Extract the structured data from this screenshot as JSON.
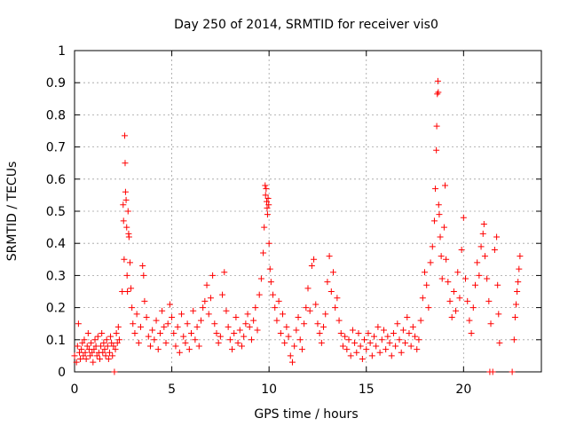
{
  "chart_data": {
    "type": "scatter",
    "title": "Day 250 of 2014, SRMTID for receiver vis0",
    "xlabel": "GPS time / hours",
    "ylabel": "SRMTID / TECUs",
    "xlim": [
      0,
      24
    ],
    "ylim": [
      0,
      1
    ],
    "xticks": [
      0,
      5,
      10,
      15,
      20
    ],
    "xtick_labels": [
      "0",
      "5",
      "10",
      "15",
      "20"
    ],
    "yticks": [
      0,
      0.1,
      0.2,
      0.3,
      0.4,
      0.5,
      0.6,
      0.7,
      0.8,
      0.9,
      1
    ],
    "ytick_labels": [
      "0",
      "0.1",
      "0.2",
      "0.3",
      "0.4",
      "0.5",
      "0.6",
      "0.7",
      "0.8",
      "0.9",
      "1"
    ],
    "grid": true,
    "marker": "+",
    "color": "#ff0000",
    "series": [
      {
        "name": "vis0",
        "points": [
          [
            0.0,
            0.05
          ],
          [
            0.1,
            0.03
          ],
          [
            0.15,
            0.08
          ],
          [
            0.2,
            0.15
          ],
          [
            0.25,
            0.06
          ],
          [
            0.3,
            0.04
          ],
          [
            0.35,
            0.07
          ],
          [
            0.4,
            0.09
          ],
          [
            0.45,
            0.05
          ],
          [
            0.5,
            0.1
          ],
          [
            0.55,
            0.06
          ],
          [
            0.6,
            0.04
          ],
          [
            0.65,
            0.08
          ],
          [
            0.7,
            0.12
          ],
          [
            0.75,
            0.07
          ],
          [
            0.8,
            0.05
          ],
          [
            0.85,
            0.09
          ],
          [
            0.9,
            0.06
          ],
          [
            0.95,
            0.03
          ],
          [
            1.0,
            0.07
          ],
          [
            1.05,
            0.1
          ],
          [
            1.1,
            0.08
          ],
          [
            1.15,
            0.05
          ],
          [
            1.2,
            0.11
          ],
          [
            1.25,
            0.06
          ],
          [
            1.3,
            0.04
          ],
          [
            1.35,
            0.08
          ],
          [
            1.4,
            0.12
          ],
          [
            1.45,
            0.06
          ],
          [
            1.5,
            0.09
          ],
          [
            1.55,
            0.07
          ],
          [
            1.6,
            0.05
          ],
          [
            1.65,
            0.1
          ],
          [
            1.7,
            0.08
          ],
          [
            1.75,
            0.04
          ],
          [
            1.8,
            0.06
          ],
          [
            1.85,
            0.11
          ],
          [
            1.9,
            0.09
          ],
          [
            1.95,
            0.05
          ],
          [
            2.0,
            0.08
          ],
          [
            2.05,
            0.0
          ],
          [
            2.1,
            0.07
          ],
          [
            2.15,
            0.12
          ],
          [
            2.2,
            0.09
          ],
          [
            2.25,
            0.14
          ],
          [
            2.3,
            0.1
          ],
          [
            2.45,
            0.25
          ],
          [
            2.5,
            0.52
          ],
          [
            2.52,
            0.47
          ],
          [
            2.55,
            0.35
          ],
          [
            2.58,
            0.735
          ],
          [
            2.6,
            0.65
          ],
          [
            2.62,
            0.56
          ],
          [
            2.65,
            0.535
          ],
          [
            2.68,
            0.45
          ],
          [
            2.7,
            0.3
          ],
          [
            2.72,
            0.25
          ],
          [
            2.75,
            0.5
          ],
          [
            2.78,
            0.43
          ],
          [
            2.8,
            0.42
          ],
          [
            2.85,
            0.34
          ],
          [
            2.9,
            0.26
          ],
          [
            2.95,
            0.2
          ],
          [
            3.0,
            0.15
          ],
          [
            3.1,
            0.12
          ],
          [
            3.2,
            0.18
          ],
          [
            3.3,
            0.09
          ],
          [
            3.4,
            0.14
          ],
          [
            3.5,
            0.33
          ],
          [
            3.55,
            0.3
          ],
          [
            3.6,
            0.22
          ],
          [
            3.7,
            0.17
          ],
          [
            3.8,
            0.11
          ],
          [
            3.9,
            0.08
          ],
          [
            4.0,
            0.13
          ],
          [
            4.1,
            0.1
          ],
          [
            4.2,
            0.16
          ],
          [
            4.3,
            0.07
          ],
          [
            4.4,
            0.12
          ],
          [
            4.5,
            0.19
          ],
          [
            4.6,
            0.14
          ],
          [
            4.7,
            0.09
          ],
          [
            4.8,
            0.15
          ],
          [
            4.9,
            0.21
          ],
          [
            5.0,
            0.17
          ],
          [
            5.1,
            0.12
          ],
          [
            5.2,
            0.08
          ],
          [
            5.3,
            0.14
          ],
          [
            5.4,
            0.06
          ],
          [
            5.5,
            0.18
          ],
          [
            5.6,
            0.11
          ],
          [
            5.7,
            0.09
          ],
          [
            5.8,
            0.15
          ],
          [
            5.9,
            0.07
          ],
          [
            6.0,
            0.12
          ],
          [
            6.1,
            0.19
          ],
          [
            6.2,
            0.1
          ],
          [
            6.3,
            0.14
          ],
          [
            6.4,
            0.08
          ],
          [
            6.5,
            0.16
          ],
          [
            6.6,
            0.2
          ],
          [
            6.7,
            0.22
          ],
          [
            6.8,
            0.27
          ],
          [
            6.9,
            0.18
          ],
          [
            7.0,
            0.23
          ],
          [
            7.1,
            0.3
          ],
          [
            7.2,
            0.15
          ],
          [
            7.3,
            0.12
          ],
          [
            7.4,
            0.09
          ],
          [
            7.5,
            0.11
          ],
          [
            7.6,
            0.24
          ],
          [
            7.7,
            0.31
          ],
          [
            7.8,
            0.19
          ],
          [
            7.9,
            0.14
          ],
          [
            8.0,
            0.1
          ],
          [
            8.1,
            0.07
          ],
          [
            8.2,
            0.12
          ],
          [
            8.3,
            0.17
          ],
          [
            8.4,
            0.09
          ],
          [
            8.5,
            0.13
          ],
          [
            8.6,
            0.08
          ],
          [
            8.7,
            0.11
          ],
          [
            8.8,
            0.15
          ],
          [
            8.9,
            0.18
          ],
          [
            9.0,
            0.14
          ],
          [
            9.1,
            0.1
          ],
          [
            9.2,
            0.16
          ],
          [
            9.3,
            0.2
          ],
          [
            9.4,
            0.13
          ],
          [
            9.5,
            0.24
          ],
          [
            9.6,
            0.29
          ],
          [
            9.7,
            0.37
          ],
          [
            9.75,
            0.45
          ],
          [
            9.8,
            0.58
          ],
          [
            9.82,
            0.55
          ],
          [
            9.85,
            0.57
          ],
          [
            9.88,
            0.53
          ],
          [
            9.9,
            0.51
          ],
          [
            9.92,
            0.49
          ],
          [
            9.95,
            0.54
          ],
          [
            9.98,
            0.52
          ],
          [
            10.0,
            0.4
          ],
          [
            10.05,
            0.32
          ],
          [
            10.1,
            0.28
          ],
          [
            10.2,
            0.24
          ],
          [
            10.3,
            0.2
          ],
          [
            10.4,
            0.16
          ],
          [
            10.5,
            0.22
          ],
          [
            10.6,
            0.12
          ],
          [
            10.7,
            0.18
          ],
          [
            10.8,
            0.09
          ],
          [
            10.9,
            0.14
          ],
          [
            11.0,
            0.11
          ],
          [
            11.1,
            0.05
          ],
          [
            11.2,
            0.03
          ],
          [
            11.3,
            0.08
          ],
          [
            11.4,
            0.13
          ],
          [
            11.5,
            0.17
          ],
          [
            11.6,
            0.1
          ],
          [
            11.7,
            0.07
          ],
          [
            11.8,
            0.15
          ],
          [
            11.9,
            0.2
          ],
          [
            12.0,
            0.26
          ],
          [
            12.1,
            0.19
          ],
          [
            12.2,
            0.33
          ],
          [
            12.3,
            0.35
          ],
          [
            12.4,
            0.21
          ],
          [
            12.5,
            0.15
          ],
          [
            12.6,
            0.12
          ],
          [
            12.7,
            0.09
          ],
          [
            12.8,
            0.14
          ],
          [
            12.9,
            0.18
          ],
          [
            13.0,
            0.28
          ],
          [
            13.1,
            0.36
          ],
          [
            13.2,
            0.25
          ],
          [
            13.3,
            0.31
          ],
          [
            13.4,
            0.2
          ],
          [
            13.5,
            0.23
          ],
          [
            13.6,
            0.16
          ],
          [
            13.7,
            0.12
          ],
          [
            13.8,
            0.08
          ],
          [
            13.9,
            0.11
          ],
          [
            14.0,
            0.07
          ],
          [
            14.1,
            0.1
          ],
          [
            14.2,
            0.05
          ],
          [
            14.3,
            0.13
          ],
          [
            14.4,
            0.09
          ],
          [
            14.5,
            0.06
          ],
          [
            14.6,
            0.12
          ],
          [
            14.7,
            0.08
          ],
          [
            14.8,
            0.04
          ],
          [
            14.9,
            0.1
          ],
          [
            15.0,
            0.07
          ],
          [
            15.1,
            0.12
          ],
          [
            15.2,
            0.09
          ],
          [
            15.3,
            0.05
          ],
          [
            15.4,
            0.11
          ],
          [
            15.5,
            0.08
          ],
          [
            15.6,
            0.14
          ],
          [
            15.7,
            0.06
          ],
          [
            15.8,
            0.1
          ],
          [
            15.9,
            0.13
          ],
          [
            16.0,
            0.07
          ],
          [
            16.1,
            0.11
          ],
          [
            16.2,
            0.09
          ],
          [
            16.3,
            0.05
          ],
          [
            16.4,
            0.12
          ],
          [
            16.5,
            0.08
          ],
          [
            16.6,
            0.15
          ],
          [
            16.7,
            0.1
          ],
          [
            16.8,
            0.06
          ],
          [
            16.9,
            0.13
          ],
          [
            17.0,
            0.09
          ],
          [
            17.1,
            0.17
          ],
          [
            17.2,
            0.12
          ],
          [
            17.3,
            0.08
          ],
          [
            17.4,
            0.14
          ],
          [
            17.5,
            0.11
          ],
          [
            17.6,
            0.07
          ],
          [
            17.7,
            0.1
          ],
          [
            17.8,
            0.16
          ],
          [
            17.9,
            0.23
          ],
          [
            18.0,
            0.31
          ],
          [
            18.1,
            0.27
          ],
          [
            18.2,
            0.2
          ],
          [
            18.3,
            0.34
          ],
          [
            18.4,
            0.39
          ],
          [
            18.5,
            0.47
          ],
          [
            18.55,
            0.57
          ],
          [
            18.6,
            0.69
          ],
          [
            18.62,
            0.765
          ],
          [
            18.65,
            0.865
          ],
          [
            18.68,
            0.905
          ],
          [
            18.7,
            0.87
          ],
          [
            18.72,
            0.52
          ],
          [
            18.75,
            0.49
          ],
          [
            18.8,
            0.42
          ],
          [
            18.85,
            0.36
          ],
          [
            18.9,
            0.29
          ],
          [
            19.0,
            0.45
          ],
          [
            19.05,
            0.58
          ],
          [
            19.1,
            0.35
          ],
          [
            19.2,
            0.28
          ],
          [
            19.3,
            0.22
          ],
          [
            19.4,
            0.17
          ],
          [
            19.5,
            0.25
          ],
          [
            19.6,
            0.19
          ],
          [
            19.7,
            0.31
          ],
          [
            19.8,
            0.23
          ],
          [
            19.9,
            0.38
          ],
          [
            20.0,
            0.48
          ],
          [
            20.1,
            0.29
          ],
          [
            20.2,
            0.22
          ],
          [
            20.3,
            0.16
          ],
          [
            20.4,
            0.12
          ],
          [
            20.5,
            0.2
          ],
          [
            20.6,
            0.27
          ],
          [
            20.7,
            0.34
          ],
          [
            20.8,
            0.3
          ],
          [
            20.9,
            0.39
          ],
          [
            21.0,
            0.43
          ],
          [
            21.05,
            0.46
          ],
          [
            21.1,
            0.36
          ],
          [
            21.2,
            0.29
          ],
          [
            21.3,
            0.22
          ],
          [
            21.35,
            0.0
          ],
          [
            21.4,
            0.15
          ],
          [
            21.5,
            0.0
          ],
          [
            21.6,
            0.38
          ],
          [
            21.7,
            0.42
          ],
          [
            21.75,
            0.27
          ],
          [
            21.8,
            0.18
          ],
          [
            21.85,
            0.09
          ],
          [
            22.5,
            0.0
          ],
          [
            22.6,
            0.1
          ],
          [
            22.65,
            0.17
          ],
          [
            22.7,
            0.21
          ],
          [
            22.75,
            0.25
          ],
          [
            22.8,
            0.28
          ],
          [
            22.85,
            0.32
          ],
          [
            22.9,
            0.36
          ]
        ]
      }
    ]
  }
}
